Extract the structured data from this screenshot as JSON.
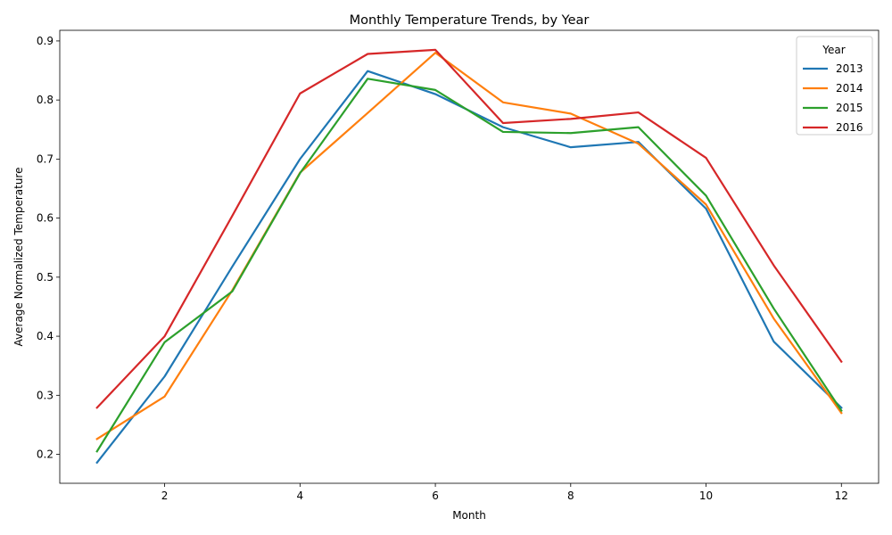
{
  "chart_data": {
    "type": "line",
    "title": "Monthly Temperature Trends, by Year",
    "xlabel": "Month",
    "ylabel": "Average Normalized Temperature",
    "xlim": [
      0.45,
      12.55
    ],
    "ylim": [
      0.151,
      0.918
    ],
    "xticks": [
      2,
      4,
      6,
      8,
      10,
      12
    ],
    "yticks": [
      0.2,
      0.3,
      0.4,
      0.5,
      0.6,
      0.7,
      0.8,
      0.9
    ],
    "grid": false,
    "legend": {
      "title": "Year",
      "position": "top-right"
    },
    "x": [
      1,
      2,
      3,
      4,
      5,
      6,
      7,
      8,
      9,
      10,
      11,
      12
    ],
    "series": [
      {
        "name": "2013",
        "color": "#1f77b4",
        "values": [
          0.186,
          0.332,
          0.518,
          0.7,
          0.849,
          0.81,
          0.754,
          0.72,
          0.729,
          0.616,
          0.391,
          0.279
        ]
      },
      {
        "name": "2014",
        "color": "#ff7f0e",
        "values": [
          0.226,
          0.298,
          0.478,
          0.677,
          0.778,
          0.88,
          0.796,
          0.777,
          0.726,
          0.623,
          0.43,
          0.27
        ]
      },
      {
        "name": "2015",
        "color": "#2ca02c",
        "values": [
          0.205,
          0.39,
          0.476,
          0.676,
          0.836,
          0.817,
          0.746,
          0.744,
          0.754,
          0.638,
          0.447,
          0.274
        ]
      },
      {
        "name": "2016",
        "color": "#d62728",
        "values": [
          0.279,
          0.4,
          0.604,
          0.811,
          0.878,
          0.885,
          0.761,
          0.768,
          0.779,
          0.702,
          0.52,
          0.357
        ]
      }
    ]
  }
}
